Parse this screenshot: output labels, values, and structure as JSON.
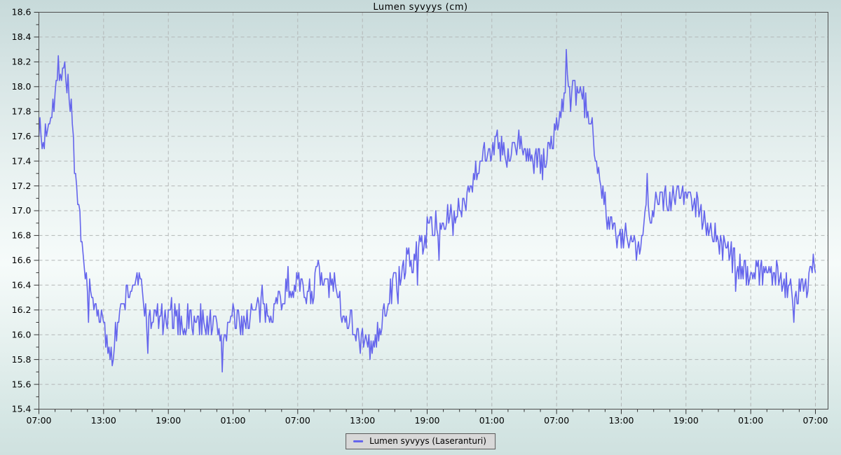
{
  "chart": {
    "title": "Lumen syvyys (cm)",
    "legend": "Lumen syvyys (Laseranturi)"
  },
  "colors": {
    "line": "#6565ec",
    "grid": "#b3b7b7",
    "axis_border": "#4d4d4d",
    "tick": "#333333",
    "text": "#000000",
    "legend_bg": "#d8d8d8",
    "legend_border": "#5a5a5a"
  },
  "chart_data": {
    "type": "line",
    "title": "Lumen syvyys (cm)",
    "xlabel": "",
    "ylabel": "",
    "unit": "cm",
    "grid": true,
    "legend_position": "bottom",
    "ylim": [
      15.4,
      18.6
    ],
    "y_tick_step": 0.2,
    "y_ticks": [
      "15.4",
      "15.6",
      "15.8",
      "16.0",
      "16.2",
      "16.4",
      "16.6",
      "16.8",
      "17.0",
      "17.2",
      "17.4",
      "17.6",
      "17.8",
      "18.0",
      "18.2",
      "18.4",
      "18.6"
    ],
    "hours": 72,
    "x_tick_interval_hours": 6,
    "x_minor_interval_hours": 1.5,
    "x_ticks": [
      "07:00",
      "13:00",
      "19:00",
      "01:00",
      "07:00",
      "13:00",
      "19:00",
      "01:00",
      "07:00",
      "13:00",
      "19:00",
      "01:00",
      "07:00"
    ],
    "observed_range": [
      15.7,
      18.3
    ],
    "series": [
      {
        "name": "Lumen syvyys (Laseranturi)",
        "color": "#6565ec",
        "anchors_hour_value": [
          [
            0,
            17.72
          ],
          [
            0.3,
            17.5
          ],
          [
            0.6,
            17.62
          ],
          [
            1,
            17.78
          ],
          [
            1.4,
            17.92
          ],
          [
            1.8,
            18.08
          ],
          [
            2.1,
            18.17
          ],
          [
            2.4,
            18.16
          ],
          [
            2.6,
            18.05
          ],
          [
            2.8,
            17.95
          ],
          [
            3,
            17.85
          ],
          [
            3.2,
            17.55
          ],
          [
            3.5,
            17.1
          ],
          [
            3.8,
            16.85
          ],
          [
            4.1,
            16.6
          ],
          [
            4.5,
            16.38
          ],
          [
            5,
            16.25
          ],
          [
            5.5,
            16.22
          ],
          [
            5.9,
            16.1
          ],
          [
            6.3,
            15.92
          ],
          [
            6.6,
            15.87
          ],
          [
            7,
            15.97
          ],
          [
            7.5,
            16.15
          ],
          [
            8,
            16.28
          ],
          [
            8.5,
            16.38
          ],
          [
            9,
            16.44
          ],
          [
            9.5,
            16.38
          ],
          [
            9.9,
            16.2
          ],
          [
            10.1,
            15.95
          ],
          [
            10.3,
            16.12
          ],
          [
            10.7,
            16.15
          ],
          [
            11,
            16.15
          ],
          [
            11.5,
            16.12
          ],
          [
            12,
            16.1
          ],
          [
            12.5,
            16.15
          ],
          [
            13,
            16.12
          ],
          [
            13.5,
            16.08
          ],
          [
            14,
            16.12
          ],
          [
            14.5,
            16.1
          ],
          [
            15,
            16.08
          ],
          [
            15.5,
            16.12
          ],
          [
            16,
            16.1
          ],
          [
            16.5,
            16.05
          ],
          [
            16.9,
            16.0
          ],
          [
            17,
            15.7
          ],
          [
            17.1,
            16.0
          ],
          [
            17.5,
            16.08
          ],
          [
            18,
            16.12
          ],
          [
            18.5,
            16.08
          ],
          [
            19,
            16.1
          ],
          [
            19.5,
            16.15
          ],
          [
            20,
            16.18
          ],
          [
            20.5,
            16.2
          ],
          [
            21,
            16.18
          ],
          [
            21.5,
            16.22
          ],
          [
            22,
            16.25
          ],
          [
            22.5,
            16.3
          ],
          [
            23,
            16.35
          ],
          [
            23.5,
            16.42
          ],
          [
            23.8,
            16.45
          ],
          [
            24,
            16.42
          ],
          [
            24.5,
            16.35
          ],
          [
            25,
            16.35
          ],
          [
            25.5,
            16.38
          ],
          [
            25.8,
            16.55
          ],
          [
            26,
            16.42
          ],
          [
            26.5,
            16.4
          ],
          [
            27,
            16.42
          ],
          [
            27.5,
            16.35
          ],
          [
            28,
            16.22
          ],
          [
            28.5,
            16.15
          ],
          [
            29,
            16.1
          ],
          [
            29.5,
            16.0
          ],
          [
            30,
            15.95
          ],
          [
            30.5,
            15.9
          ],
          [
            31,
            15.9
          ],
          [
            31.5,
            16.0
          ],
          [
            32,
            16.18
          ],
          [
            32.5,
            16.32
          ],
          [
            33,
            16.42
          ],
          [
            33.5,
            16.48
          ],
          [
            34,
            16.52
          ],
          [
            34.5,
            16.58
          ],
          [
            35,
            16.65
          ],
          [
            35.5,
            16.75
          ],
          [
            36,
            16.83
          ],
          [
            36.5,
            16.88
          ],
          [
            37,
            16.8
          ],
          [
            37.3,
            16.88
          ],
          [
            37.7,
            16.92
          ],
          [
            38,
            16.95
          ],
          [
            38.5,
            16.93
          ],
          [
            39,
            17.0
          ],
          [
            39.5,
            17.1
          ],
          [
            40,
            17.2
          ],
          [
            40.5,
            17.33
          ],
          [
            41,
            17.43
          ],
          [
            41.5,
            17.48
          ],
          [
            42,
            17.5
          ],
          [
            42.5,
            17.53
          ],
          [
            43,
            17.48
          ],
          [
            43.5,
            17.38
          ],
          [
            44,
            17.5
          ],
          [
            44.5,
            17.53
          ],
          [
            45,
            17.5
          ],
          [
            45.5,
            17.44
          ],
          [
            46,
            17.38
          ],
          [
            46.5,
            17.4
          ],
          [
            47,
            17.44
          ],
          [
            47.5,
            17.52
          ],
          [
            48,
            17.68
          ],
          [
            48.4,
            17.8
          ],
          [
            48.7,
            17.92
          ],
          [
            48.9,
            18.18
          ],
          [
            49.1,
            17.95
          ],
          [
            49.5,
            17.92
          ],
          [
            50,
            17.95
          ],
          [
            50.4,
            17.9
          ],
          [
            50.8,
            17.8
          ],
          [
            51.2,
            17.7
          ],
          [
            51.6,
            17.52
          ],
          [
            52,
            17.3
          ],
          [
            52.4,
            17.1
          ],
          [
            52.8,
            16.95
          ],
          [
            53.2,
            16.85
          ],
          [
            53.6,
            16.78
          ],
          [
            54,
            16.75
          ],
          [
            54.5,
            16.8
          ],
          [
            55,
            16.72
          ],
          [
            55.5,
            16.68
          ],
          [
            56,
            16.78
          ],
          [
            56.4,
            17.3
          ],
          [
            56.6,
            16.95
          ],
          [
            57,
            17.05
          ],
          [
            57.5,
            17.1
          ],
          [
            58,
            17.14
          ],
          [
            58.5,
            17.1
          ],
          [
            59,
            17.14
          ],
          [
            59.5,
            17.15
          ],
          [
            60,
            17.1
          ],
          [
            60.5,
            17.12
          ],
          [
            61,
            17.05
          ],
          [
            61.5,
            16.95
          ],
          [
            62,
            16.88
          ],
          [
            62.5,
            16.8
          ],
          [
            63,
            16.75
          ],
          [
            63.5,
            16.7
          ],
          [
            64,
            16.65
          ],
          [
            64.5,
            16.6
          ],
          [
            65,
            16.55
          ],
          [
            65.5,
            16.52
          ],
          [
            66,
            16.5
          ],
          [
            66.5,
            16.5
          ],
          [
            67,
            16.5
          ],
          [
            67.5,
            16.52
          ],
          [
            68,
            16.5
          ],
          [
            68.5,
            16.46
          ],
          [
            69,
            16.45
          ],
          [
            69.5,
            16.4
          ],
          [
            70,
            16.3
          ],
          [
            70.3,
            16.35
          ],
          [
            70.7,
            16.4
          ],
          [
            71,
            16.42
          ],
          [
            71.5,
            16.48
          ],
          [
            72,
            16.62
          ]
        ]
      }
    ],
    "noise": {
      "seed": 7,
      "amplitude": 0.12,
      "step_hours": 0.1,
      "quantize": 0.05
    }
  }
}
